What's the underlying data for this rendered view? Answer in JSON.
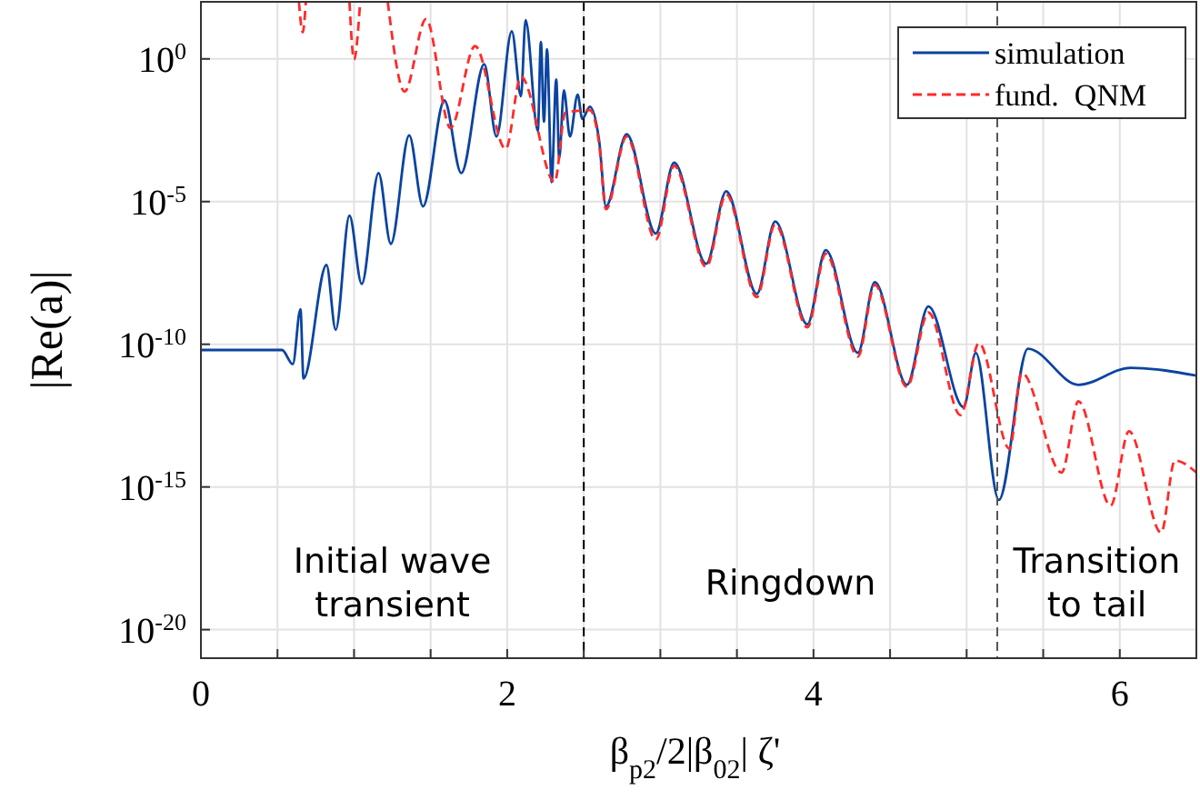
{
  "chart_data": {
    "type": "line",
    "xlabel": "β$_{p2}$/2|β$_{02}$| ζ'",
    "ylabel": "|Re(a)|",
    "log": "y",
    "grid": true,
    "legend": "top right",
    "xlim": [
      0,
      6.5
    ],
    "ylim": [
      1e-21,
      100
    ],
    "xticks": [
      0,
      {
        "value": 0.5,
        "label": null
      },
      {
        "value": 1,
        "label": null
      },
      {
        "value": 1.5,
        "label": null
      },
      2,
      {
        "value": 2.5,
        "label": null
      },
      {
        "value": 3,
        "label": null
      },
      {
        "value": 3.5,
        "label": null
      },
      4,
      {
        "value": 4.5,
        "label": null
      },
      {
        "value": 5,
        "label": null
      },
      {
        "value": 5.5,
        "label": null
      },
      6
    ],
    "yticks": [
      {
        "value": 1,
        "label": "10$^{0}$"
      },
      {
        "value": 1e-05,
        "label": "10$^{-5}$"
      },
      {
        "value": 1e-10,
        "label": "10$^{-10}$"
      },
      {
        "value": 1e-15,
        "label": "10$^{-15}$"
      },
      {
        "value": 1e-20,
        "label": "10$^{-20}$"
      }
    ],
    "series": [
      {
        "name": "simulation",
        "color": "#0b44a0",
        "line_style": "solid",
        "x": [
          0,
          0.53,
          0.6,
          0.65,
          0.67,
          0.82,
          0.88,
          0.97,
          1.05,
          1.16,
          1.24,
          1.36,
          1.45,
          1.59,
          1.7,
          1.85,
          1.93,
          2.03,
          2.09,
          2.12,
          2.2,
          2.22,
          2.24,
          2.26,
          2.29,
          2.32,
          2.34,
          2.37,
          2.41,
          2.46,
          2.49,
          2.54,
          2.6,
          2.645,
          2.78,
          2.97,
          3.09,
          3.3,
          3.43,
          3.63,
          3.75,
          3.96,
          4.08,
          4.29,
          4.4,
          4.61,
          4.75,
          4.98,
          5.06,
          5.21,
          5.4,
          5.73,
          6.07,
          6.5
        ],
        "values": [
          6.3e-11,
          6.3e-11,
          2e-11,
          1.7e-09,
          6.3e-12,
          6e-08,
          3.2e-10,
          3.2e-06,
          1.3e-08,
          0.0001,
          3.3e-07,
          0.0021,
          6.8e-06,
          0.035,
          0.0001,
          0.65,
          0.0019,
          9.3,
          0.049,
          23,
          0.003,
          3.9,
          0.0063,
          2.2,
          4.8e-05,
          0.19,
          0.00033,
          0.079,
          0.0019,
          0.056,
          0.0079,
          0.021,
          0.0014,
          6.8e-06,
          0.0023,
          7.6e-07,
          0.00023,
          6.6e-08,
          2.3e-05,
          5.8e-09,
          2e-06,
          5e-10,
          2e-07,
          5e-11,
          1.5e-08,
          3.8e-12,
          2.1e-09,
          6.3e-13,
          5e-11,
          3.5e-16,
          7e-11,
          3.8e-12,
          1.5e-11,
          8e-12
        ]
      },
      {
        "name": "fund.  QNM",
        "color": "#ff2a2a",
        "line_style": "dashed",
        "x": [
          0.64,
          0.665,
          0.685,
          0.8,
          0.97,
          1.0,
          1.04,
          1.1,
          1.22,
          1.33,
          1.47,
          1.63,
          1.79,
          1.99,
          2.09,
          2.31,
          2.38,
          2.54,
          2.6,
          2.645,
          2.78,
          2.97,
          3.09,
          3.3,
          3.43,
          3.63,
          3.75,
          3.96,
          4.08,
          4.29,
          4.4,
          4.61,
          4.75,
          4.96,
          5.08,
          5.28,
          5.36,
          5.62,
          5.73,
          5.94,
          6.06,
          6.27,
          6.36,
          6.5
        ],
        "values": [
          100,
          8.5,
          100,
          null,
          100,
          0.95,
          100,
          null,
          100,
          0.072,
          25,
          0.0038,
          2.8,
          0.00069,
          0.24,
          4.8e-05,
          0.013,
          0.016,
          0.0011,
          5.4e-06,
          0.0019,
          4.6e-07,
          0.00018,
          5.1e-08,
          1.8e-05,
          4.5e-09,
          1.6e-06,
          3.9e-10,
          1.5e-07,
          3.7e-11,
          1.2e-08,
          3.2e-12,
          1.3e-09,
          3.3e-13,
          1.1e-10,
          2.2e-14,
          1e-11,
          3.2e-15,
          1e-12,
          2.2e-16,
          8.9e-14,
          2.5e-17,
          8.5e-15,
          3.2e-15
        ]
      }
    ],
    "ref_lines": [
      {
        "axis": "x",
        "value": 2.5,
        "color": "#000000",
        "line_style": "dashed"
      },
      {
        "axis": "x",
        "value": 5.2,
        "color": "#555555",
        "line_style": "dashed"
      }
    ],
    "annotations": [
      "Initial wave transient",
      "Ringdown",
      "Transition to tail"
    ]
  }
}
